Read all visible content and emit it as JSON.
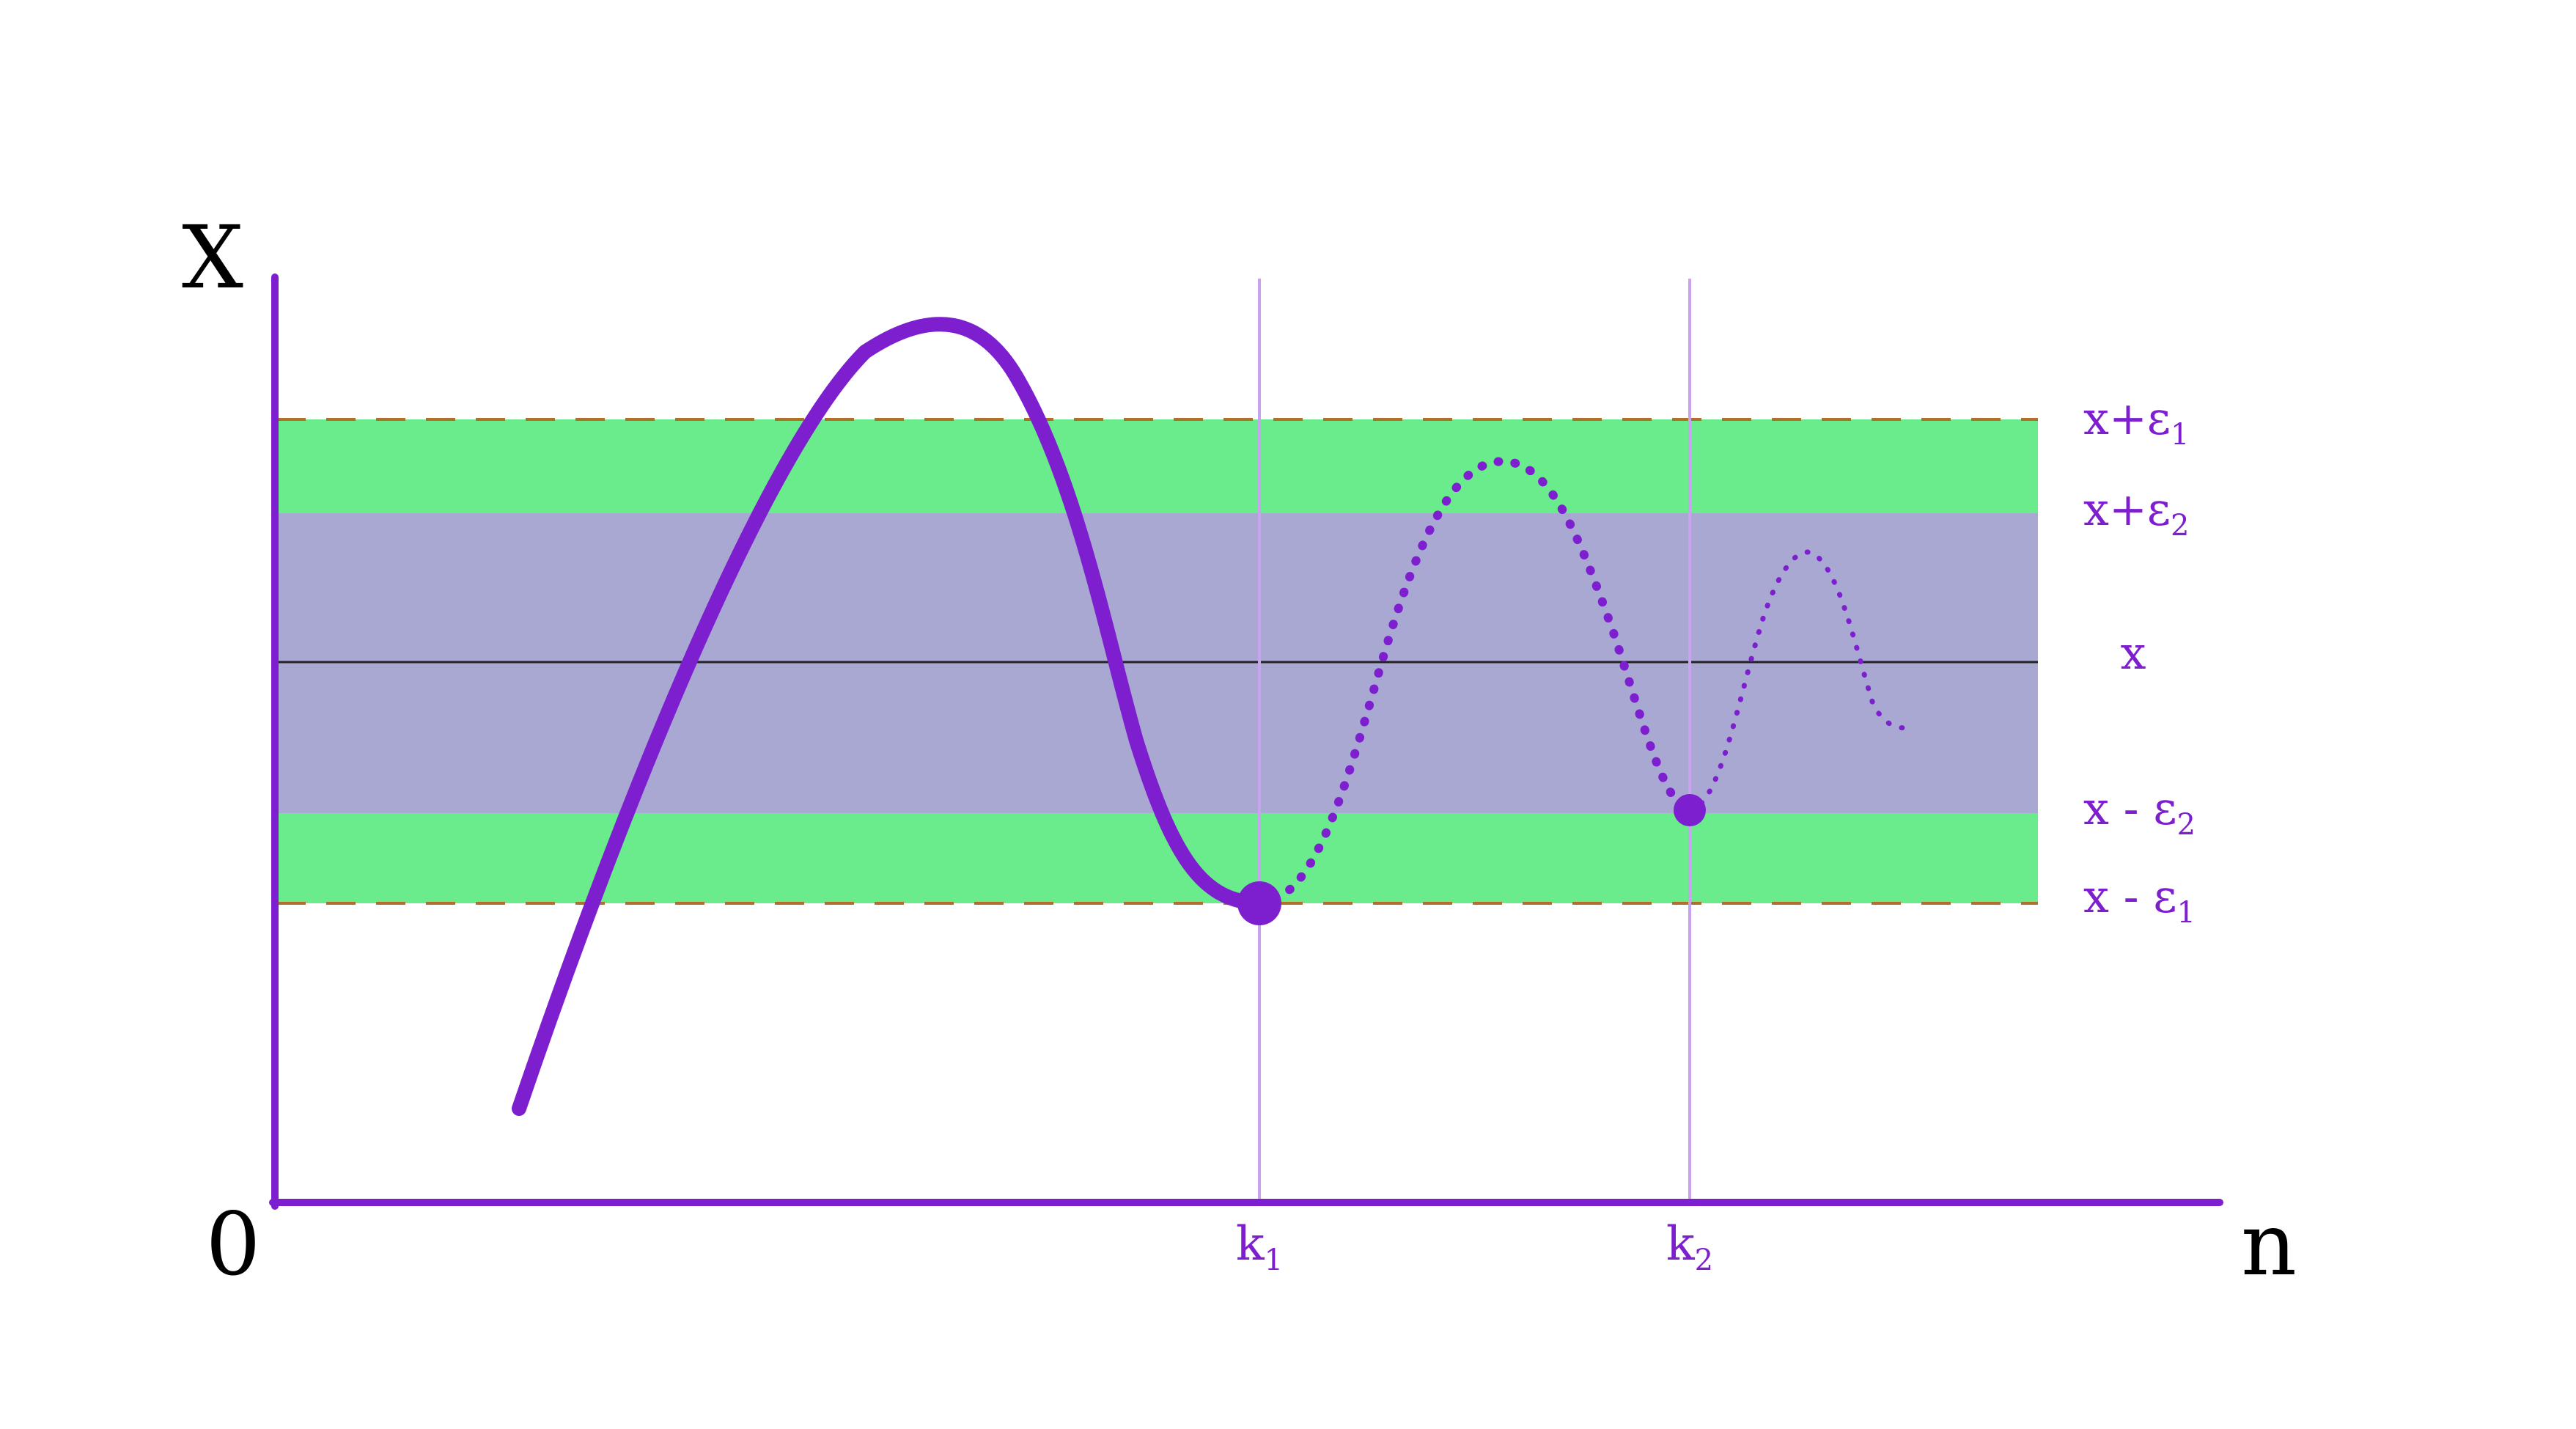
{
  "axes": {
    "y_label": "X",
    "x_label": "n",
    "origin_label": "0"
  },
  "ticks": [
    {
      "base": "k",
      "sub": "1"
    },
    {
      "base": "k",
      "sub": "2"
    }
  ],
  "bands": {
    "upper_outer": {
      "base": "x+ε",
      "sub": "1"
    },
    "upper_inner": {
      "base": "x+ε",
      "sub": "2"
    },
    "center": {
      "base": "x",
      "sub": ""
    },
    "lower_inner": {
      "base": "x - ε",
      "sub": "2"
    },
    "lower_outer": {
      "base": "x - ε",
      "sub": "1"
    }
  },
  "colors": {
    "axis": "#7d1fcf",
    "curve": "#7d1fcf",
    "label": "#7d1fcf",
    "outer_band": "#6aec8c",
    "inner_band": "#a9a8d2",
    "band_border": "#b06f2a",
    "center_line": "#222222",
    "marker_line": "#c9a2f0",
    "text_dark": "#000000"
  }
}
